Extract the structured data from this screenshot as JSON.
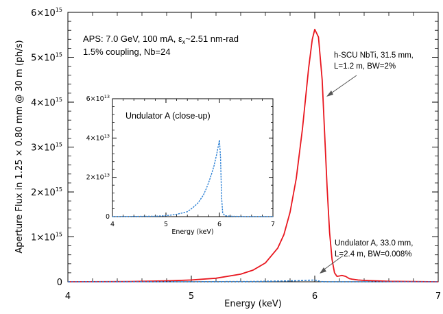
{
  "chart_data": [
    {
      "type": "line",
      "xlabel": "Energy (keV)",
      "ylabel": "Aperture Flux in 1.25 × 0.80 mm @ 30 m (ph/s)",
      "xlim": [
        4,
        7
      ],
      "ylim": [
        0,
        6000000000000000.0
      ],
      "x_ticks": [
        {
          "value": 4,
          "label": "4"
        },
        {
          "value": 5,
          "label": "5"
        },
        {
          "value": 6,
          "label": "6"
        },
        {
          "value": 7,
          "label": "7"
        }
      ],
      "y_ticks": [
        {
          "value": 0,
          "mant": "0",
          "exp": ""
        },
        {
          "value": 1000000000000000.0,
          "mant": "1×10",
          "exp": "15"
        },
        {
          "value": 2000000000000000.0,
          "mant": "2×10",
          "exp": "15"
        },
        {
          "value": 3000000000000000.0,
          "mant": "3×10",
          "exp": "15"
        },
        {
          "value": 4000000000000000.0,
          "mant": "4×10",
          "exp": "15"
        },
        {
          "value": 5000000000000000.0,
          "mant": "5×10",
          "exp": "15"
        },
        {
          "value": 6000000000000000.0,
          "mant": "6×10",
          "exp": "15"
        }
      ],
      "annotations": {
        "params_line1": "APS: 7.0 GeV, 100 mA, ε",
        "params_sub": "x",
        "params_line1_tail": "~2.51 nm-rad",
        "params_line2": "1.5% coupling, Nb=24",
        "scu_line1": "h-SCU NbTi, 31.5 mm,",
        "scu_line2": "L=1.2 m, BW=2%",
        "und_line1": "Undulator A, 33.0 mm,",
        "und_line2": "L=2.4 m, BW=0.008%"
      },
      "series": [
        {
          "color": "#e8161e",
          "style": "solid",
          "x": [
            4.0,
            4.5,
            4.8,
            5.0,
            5.2,
            5.4,
            5.5,
            5.6,
            5.7,
            5.75,
            5.8,
            5.85,
            5.9,
            5.95,
            5.98,
            6.0,
            6.03,
            6.06,
            6.08,
            6.1,
            6.12,
            6.14,
            6.16,
            6.18,
            6.2,
            6.22,
            6.25,
            6.28,
            6.3,
            6.35,
            6.4,
            6.5,
            6.6,
            6.8,
            7.0
          ],
          "y": [
            0.0,
            5000000000000.0,
            20000000000000.0,
            40000000000000.0,
            80000000000000.0,
            170000000000000.0,
            260000000000000.0,
            420000000000000.0,
            750000000000000.0,
            1050000000000000.0,
            1550000000000000.0,
            2300000000000000.0,
            3400000000000000.0,
            4750000000000000.0,
            5400000000000000.0,
            5620000000000000.0,
            5450000000000000.0,
            4500000000000000.0,
            3300000000000000.0,
            2100000000000000.0,
            1100000000000000.0,
            500000000000000.0,
            200000000000000.0,
            120000000000000.0,
            130000000000000.0,
            140000000000000.0,
            120000000000000.0,
            70000000000000.0,
            60000000000000.0,
            40000000000000.0,
            30000000000000.0,
            20000000000000.0,
            10000000000000.0,
            5000000000000.0,
            0.0
          ]
        },
        {
          "color": "#2a7fd4",
          "style": "dashed",
          "x": [
            4.0,
            5.0,
            5.5,
            5.7,
            5.8,
            5.9,
            5.95,
            6.0,
            6.05,
            6.1,
            6.5,
            7.0
          ],
          "y": [
            0.0,
            2000000000000.0,
            6000000000000.0,
            15000000000000.0,
            20000000000000.0,
            28000000000000.0,
            34000000000000.0,
            39000000000000.0,
            4000000000000.0,
            1500000000000.0,
            500000000000.0,
            0.0
          ]
        }
      ]
    },
    {
      "type": "line",
      "title": "Undulator A (close-up)",
      "xlabel": "Energy (keV)",
      "xlim": [
        4,
        7
      ],
      "ylim": [
        0,
        60000000000000.0
      ],
      "x_ticks": [
        {
          "value": 4,
          "label": "4"
        },
        {
          "value": 5,
          "label": "5"
        },
        {
          "value": 6,
          "label": "6"
        },
        {
          "value": 7,
          "label": "7"
        }
      ],
      "y_ticks": [
        {
          "value": 0,
          "mant": "0",
          "exp": ""
        },
        {
          "value": 20000000000000.0,
          "mant": "2×10",
          "exp": "13"
        },
        {
          "value": 40000000000000.0,
          "mant": "4×10",
          "exp": "13"
        },
        {
          "value": 60000000000000.0,
          "mant": "6×10",
          "exp": "13"
        }
      ],
      "series": [
        {
          "color": "#2a7fd4",
          "style": "dashed",
          "x": [
            4.0,
            4.8,
            5.0,
            5.2,
            5.4,
            5.5,
            5.6,
            5.7,
            5.75,
            5.8,
            5.85,
            5.9,
            5.95,
            5.98,
            6.0,
            6.02,
            6.04,
            6.06,
            6.1,
            6.2,
            6.5,
            7.0
          ],
          "y": [
            0.0,
            200000000000.0,
            500000000000.0,
            1200000000000.0,
            2500000000000.0,
            4500000000000.0,
            7000000000000.0,
            11000000000000.0,
            14000000000000.0,
            17500000000000.0,
            21500000000000.0,
            26000000000000.0,
            32000000000000.0,
            36000000000000.0,
            39000000000000.0,
            30000000000000.0,
            10000000000000.0,
            2000000000000.0,
            500000000000.0,
            200000000000.0,
            0.0,
            0.0
          ]
        }
      ]
    }
  ]
}
